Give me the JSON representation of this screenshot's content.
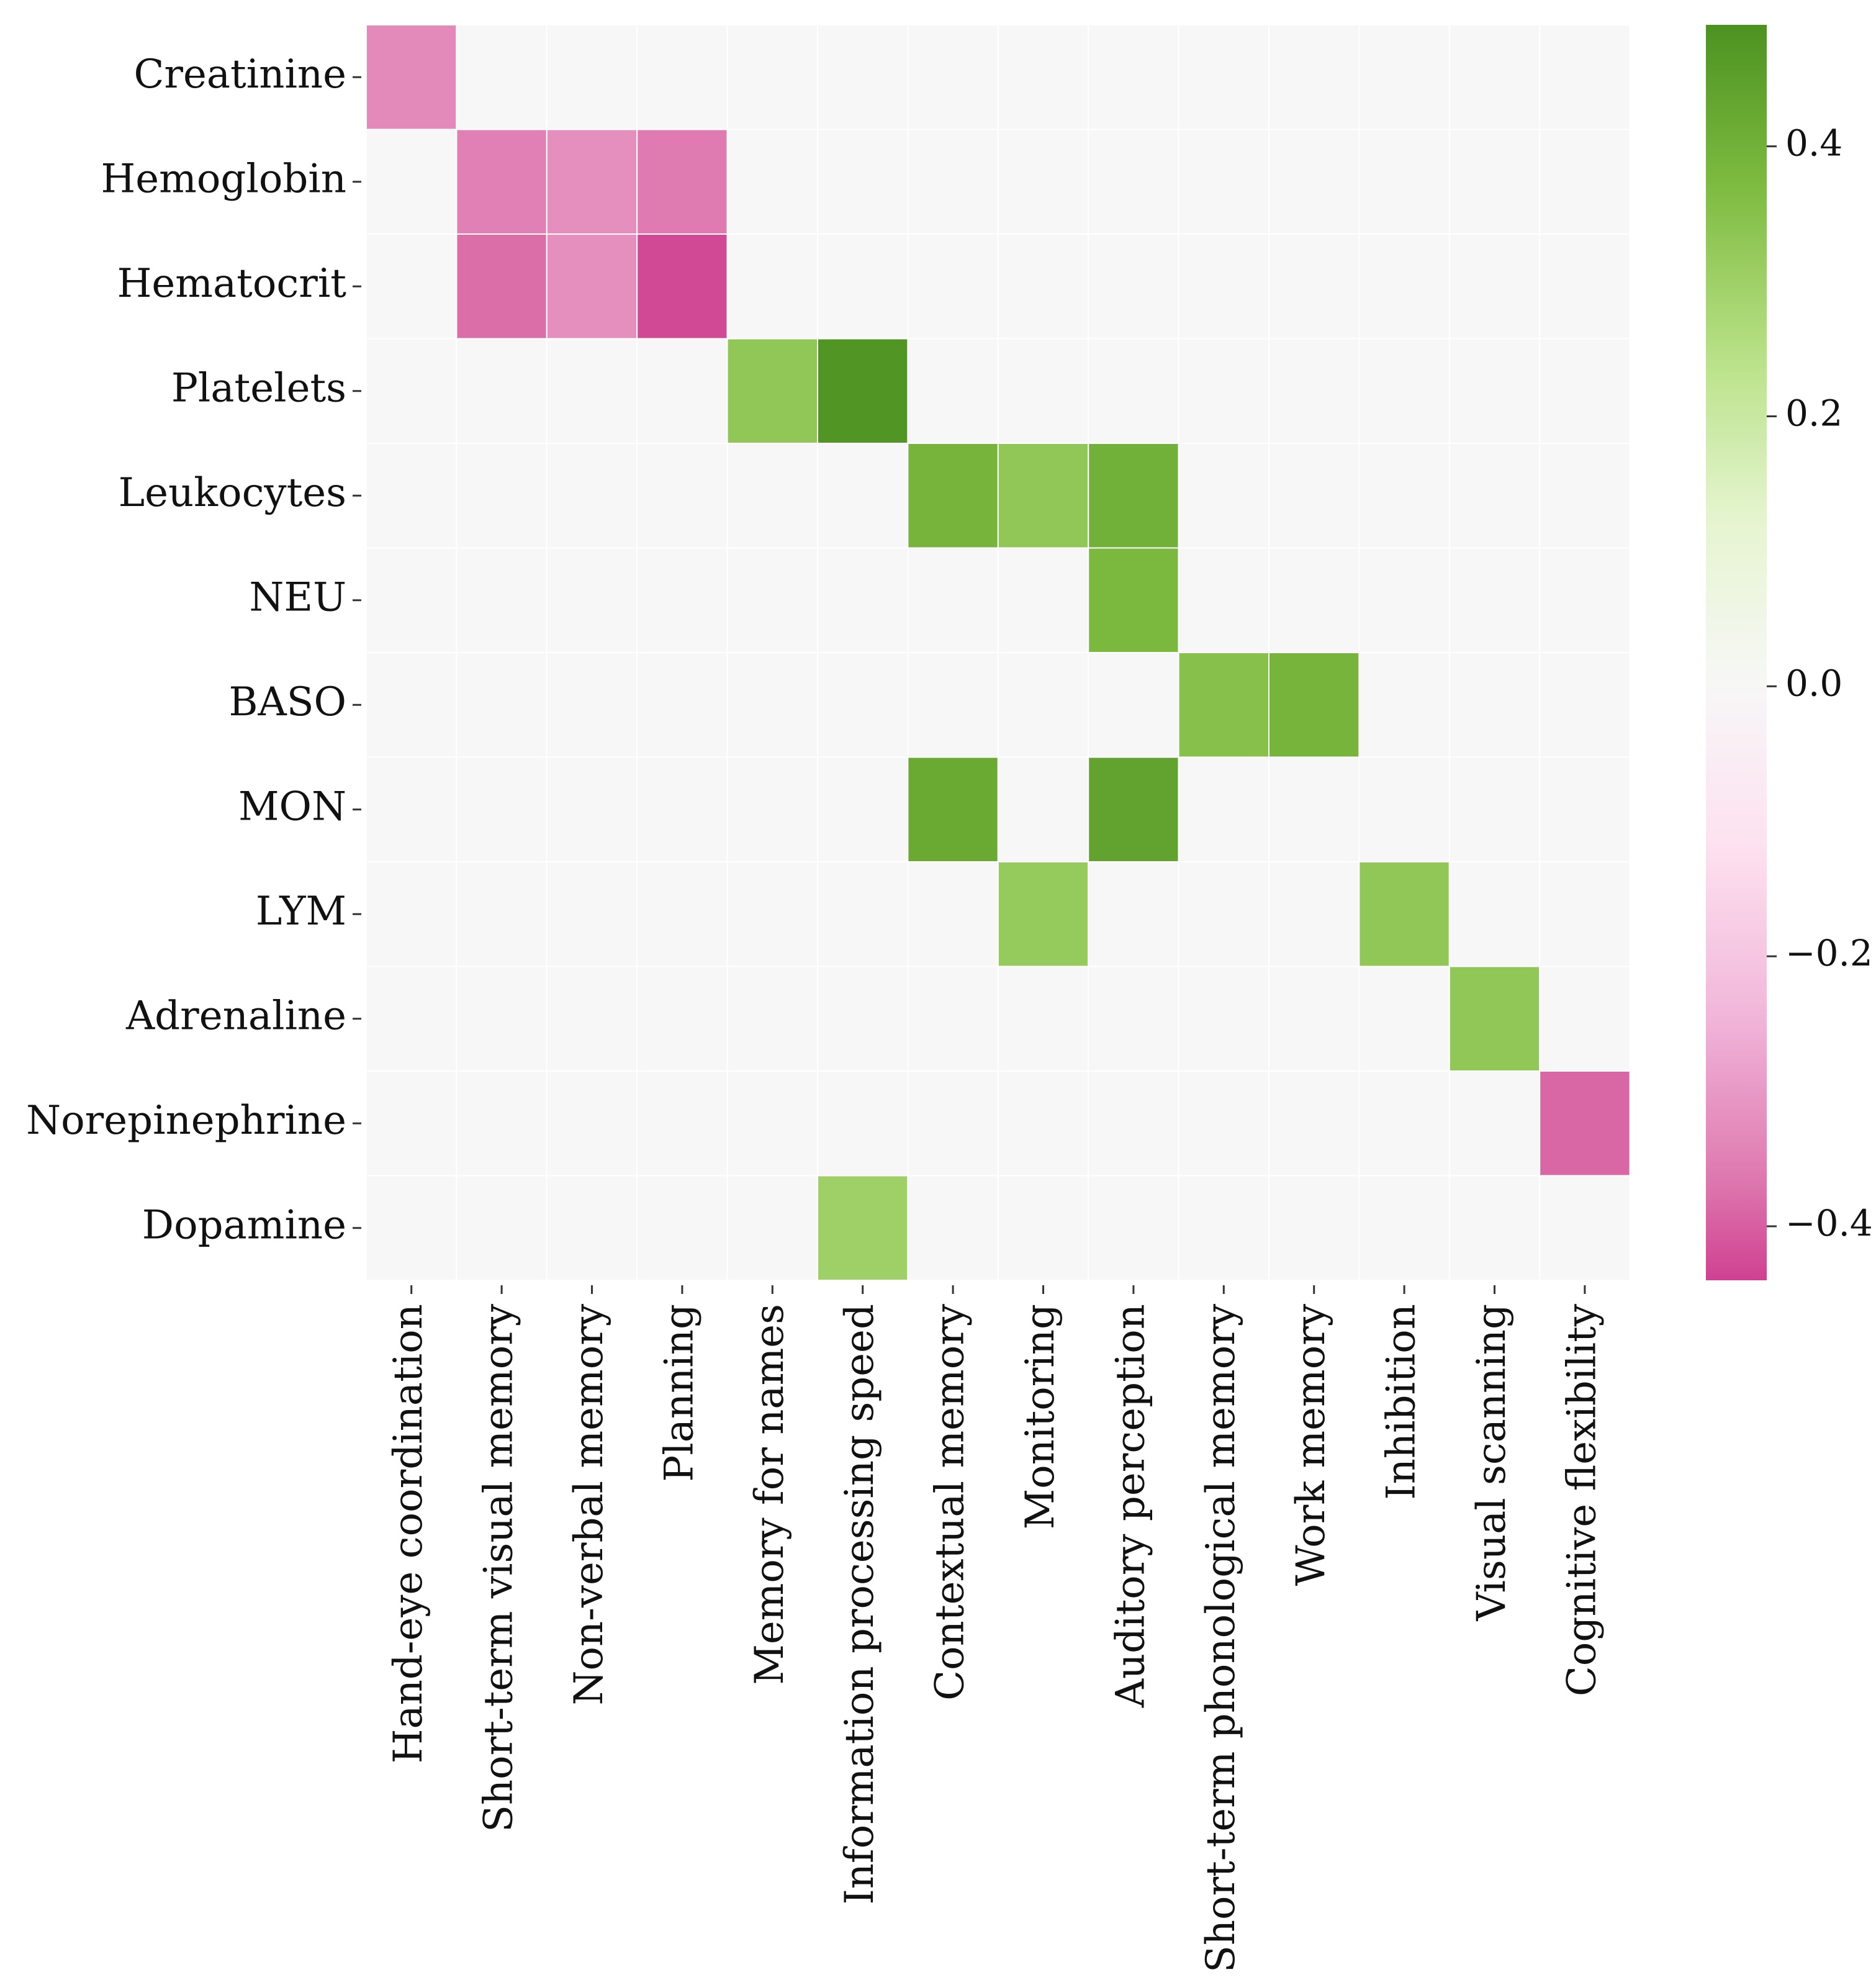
{
  "chart_data": {
    "type": "heatmap",
    "title": "",
    "xlabel": "",
    "ylabel": "",
    "rows": [
      "Creatinine",
      "Hemoglobin",
      "Hematocrit",
      "Platelets",
      "Leukocytes",
      "NEU",
      "BASO",
      "MON",
      "LYM",
      "Adrenaline",
      "Norepinephrine",
      "Dopamine"
    ],
    "columns": [
      "Hand-eye coordination",
      "Short-term visual memory",
      "Non-verbal memory",
      "Planning",
      "Memory for names",
      "Information processing speed",
      "Contextual memory",
      "Monitoring",
      "Auditory perception",
      "Short-term phonological memory",
      "Work memory",
      "Inhibition",
      "Visual scanning",
      "Cognitive flexibility"
    ],
    "cells": [
      {
        "row": "Creatinine",
        "col": "Hand-eye coordination",
        "value": -0.33
      },
      {
        "row": "Hemoglobin",
        "col": "Short-term visual memory",
        "value": -0.35
      },
      {
        "row": "Hemoglobin",
        "col": "Non-verbal memory",
        "value": -0.32
      },
      {
        "row": "Hemoglobin",
        "col": "Planning",
        "value": -0.36
      },
      {
        "row": "Hematocrit",
        "col": "Short-term visual memory",
        "value": -0.38
      },
      {
        "row": "Hematocrit",
        "col": "Non-verbal memory",
        "value": -0.32
      },
      {
        "row": "Hematocrit",
        "col": "Planning",
        "value": -0.43
      },
      {
        "row": "Platelets",
        "col": "Memory for names",
        "value": 0.33
      },
      {
        "row": "Platelets",
        "col": "Information processing speed",
        "value": 0.48
      },
      {
        "row": "Leukocytes",
        "col": "Contextual memory",
        "value": 0.39
      },
      {
        "row": "Leukocytes",
        "col": "Monitoring",
        "value": 0.33
      },
      {
        "row": "Leukocytes",
        "col": "Auditory perception",
        "value": 0.4
      },
      {
        "row": "NEU",
        "col": "Auditory perception",
        "value": 0.38
      },
      {
        "row": "BASO",
        "col": "Short-term phonological memory",
        "value": 0.35
      },
      {
        "row": "BASO",
        "col": "Work memory",
        "value": 0.39
      },
      {
        "row": "MON",
        "col": "Contextual memory",
        "value": 0.42
      },
      {
        "row": "MON",
        "col": "Auditory perception",
        "value": 0.44
      },
      {
        "row": "LYM",
        "col": "Monitoring",
        "value": 0.32
      },
      {
        "row": "LYM",
        "col": "Inhibition",
        "value": 0.33
      },
      {
        "row": "Adrenaline",
        "col": "Visual scanning",
        "value": 0.33
      },
      {
        "row": "Norepinephrine",
        "col": "Cognitive flexibility",
        "value": -0.39
      },
      {
        "row": "Dopamine",
        "col": "Information processing speed",
        "value": 0.3
      }
    ],
    "empty_value_color": "#f7f7f7",
    "colorbar": {
      "min": -0.44,
      "max": 0.49,
      "ticks": [
        0.4,
        0.2,
        0.0,
        -0.2,
        -0.4
      ],
      "tick_labels": [
        "0.4",
        "0.2",
        "0.0",
        "−0.2",
        "−0.4"
      ],
      "colormap": "PiYG",
      "stops": [
        "#c51b7d",
        "#de77ae",
        "#f1b6da",
        "#fde0ef",
        "#f7f7f7",
        "#e6f5d0",
        "#b8e186",
        "#7fbc41",
        "#4d9221"
      ]
    }
  }
}
